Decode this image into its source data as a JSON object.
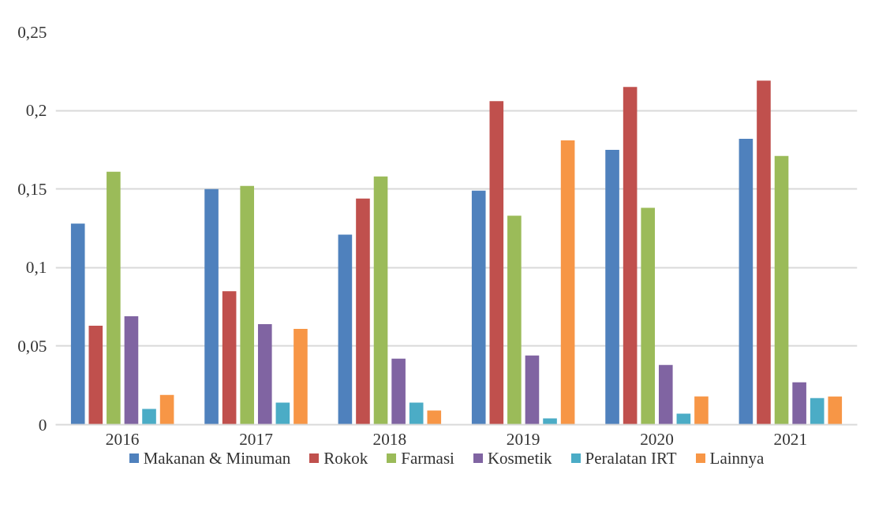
{
  "chart_data": {
    "type": "bar",
    "categories": [
      "2016",
      "2017",
      "2018",
      "2019",
      "2020",
      "2021"
    ],
    "series": [
      {
        "name": "Makanan & Minuman",
        "color": "#4f81bd",
        "values": [
          0.128,
          0.15,
          0.121,
          0.149,
          0.175,
          0.182
        ]
      },
      {
        "name": "Rokok",
        "color": "#c0504d",
        "values": [
          0.063,
          0.085,
          0.144,
          0.206,
          0.215,
          0.219
        ]
      },
      {
        "name": "Farmasi",
        "color": "#9bbb59",
        "values": [
          0.161,
          0.152,
          0.158,
          0.133,
          0.138,
          0.171
        ]
      },
      {
        "name": "Kosmetik",
        "color": "#8064a2",
        "values": [
          0.069,
          0.064,
          0.042,
          0.044,
          0.038,
          0.027
        ]
      },
      {
        "name": "Peralatan IRT",
        "color": "#4bacc6",
        "values": [
          0.01,
          0.014,
          0.014,
          0.004,
          0.007,
          0.017
        ]
      },
      {
        "name": "Lainnya",
        "color": "#f79646",
        "values": [
          0.019,
          0.061,
          0.009,
          0.181,
          0.018,
          0.018
        ]
      }
    ],
    "ylim": [
      0,
      0.25
    ],
    "yticks": [
      {
        "value": 0,
        "label": "0"
      },
      {
        "value": 0.05,
        "label": "0,05"
      },
      {
        "value": 0.1,
        "label": "0,1"
      },
      {
        "value": 0.15,
        "label": "0,15"
      },
      {
        "value": 0.2,
        "label": "0,2"
      },
      {
        "value": 0.25,
        "label": "0,25"
      }
    ],
    "grid": "y",
    "legend": "bottom"
  }
}
